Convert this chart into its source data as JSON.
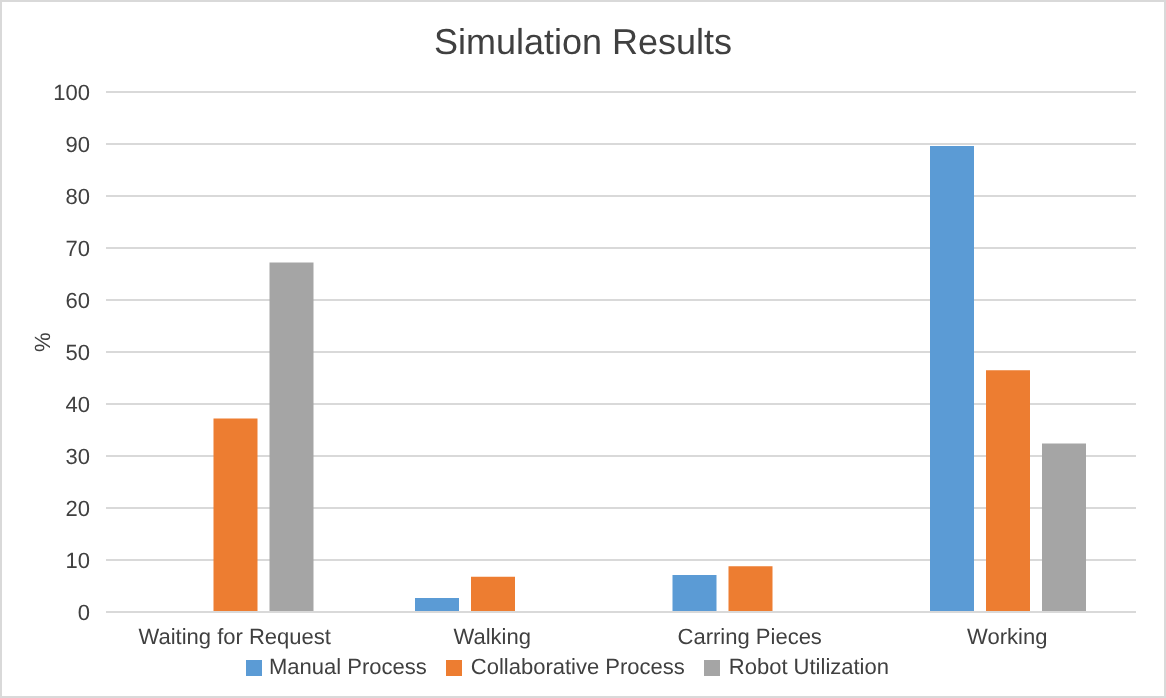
{
  "chart_data": {
    "type": "bar",
    "title": "Simulation Results",
    "ylabel": "%",
    "categories": [
      "Waiting for Request",
      "Walking",
      "Carring Pieces",
      "Working"
    ],
    "series": [
      {
        "name": "Manual Process",
        "color": "#5b9bd5",
        "values": [
          0,
          2.7,
          7.1,
          89.6
        ]
      },
      {
        "name": "Collaborative Process",
        "color": "#ed7d31",
        "values": [
          37.2,
          6.8,
          8.8,
          46.5
        ]
      },
      {
        "name": "Robot Utilization",
        "color": "#a5a5a5",
        "values": [
          67.2,
          0,
          0,
          32.4
        ]
      }
    ],
    "ylim": [
      0,
      100
    ],
    "yticks": [
      0,
      10,
      20,
      30,
      40,
      50,
      60,
      70,
      80,
      90,
      100
    ],
    "grid": "y",
    "legend": "bottom"
  }
}
